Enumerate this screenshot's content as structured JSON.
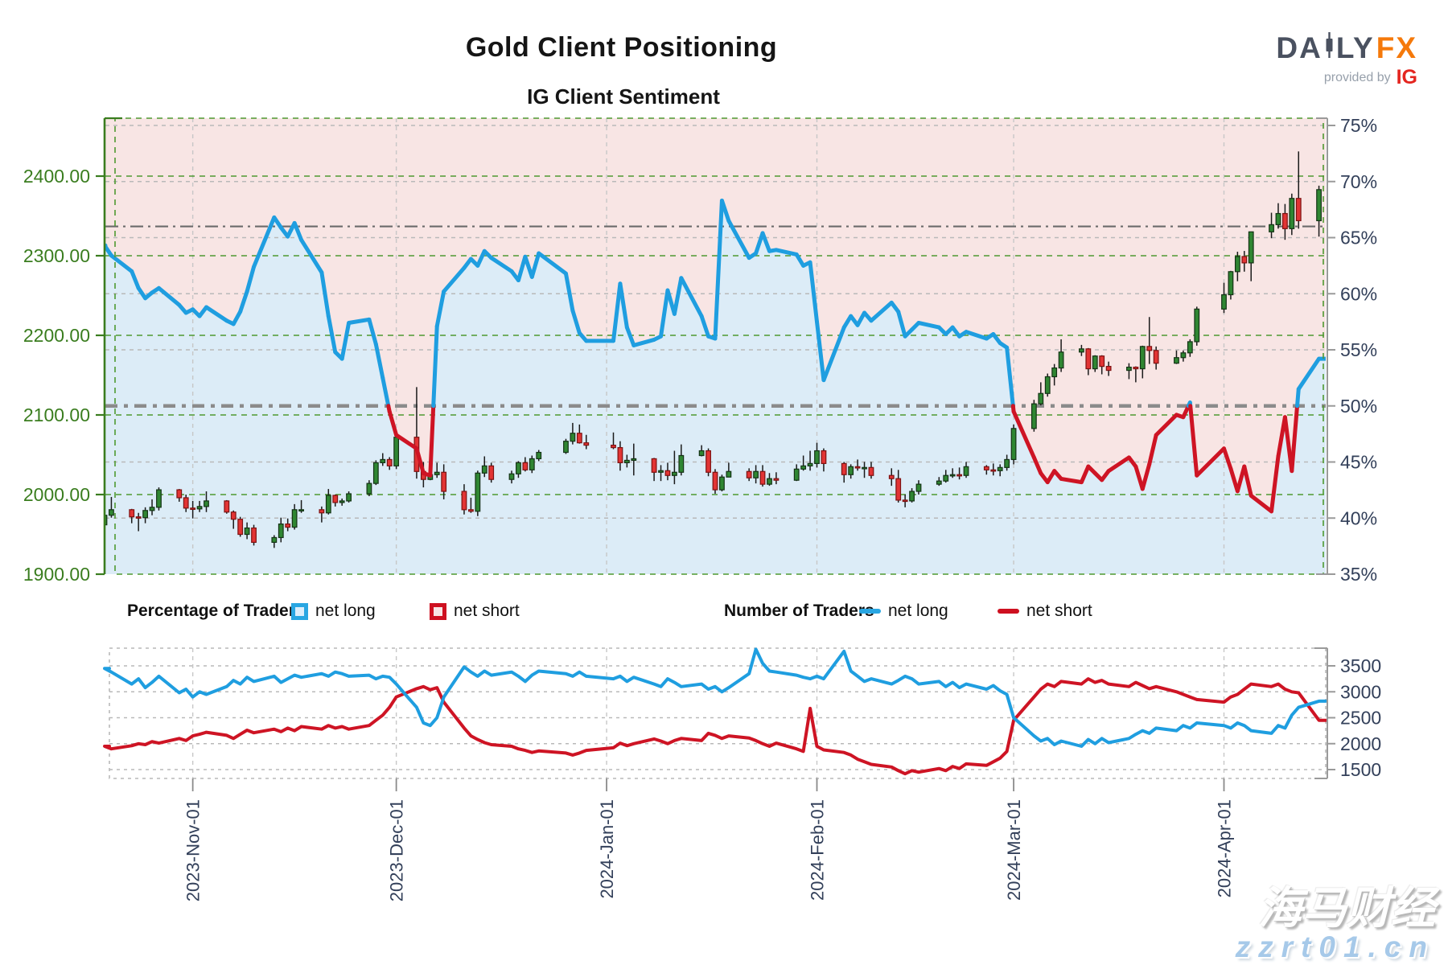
{
  "header": {
    "title": "Gold Client Positioning",
    "subtitle": "IG Client Sentiment"
  },
  "logo": {
    "brand_left": "DA",
    "brand_right": "LY",
    "brand_fx": "FX",
    "provided_by": "provided by",
    "ig": "IG"
  },
  "legend": {
    "pct_title": "Percentage of Traders",
    "num_title": "Number of Traders",
    "net_long": "net long",
    "net_short": "net short"
  },
  "watermark": {
    "line1": "海马财经",
    "line2": "zzrt01.cn"
  },
  "colors": {
    "sentiment_blue": "#1f9ee0",
    "sentiment_red": "#ce1424",
    "fill_above_pink": "#f8e5e4",
    "fill_below_blue": "#dcecf7",
    "candle_up_fill": "#2f8632",
    "candle_up_stroke": "#143315",
    "candle_down_fill": "#e23434",
    "candle_down_stroke": "#7e1111",
    "wick": "#1a1a1a",
    "green_axis": "#3a7d1f",
    "green_grid": "#4f9931",
    "gray_grid": "#b9b9b9",
    "vert_grid": "#c7c7c7",
    "ref_thin": "#6a6a6a",
    "ref_thick": "#8b8b8b",
    "right_axis_text": "#33405a",
    "spine_gray": "#9a9a9a"
  },
  "chart_data": {
    "type": "candlestick+line dual-panel sentiment chart",
    "title": "Gold Client Positioning",
    "subtitle": "IG Client Sentiment",
    "x_domain_days": 180,
    "x_start_date": "2023-Oct-19",
    "x_ticks": [
      {
        "day": 13,
        "label": "2023-Nov-01"
      },
      {
        "day": 43,
        "label": "2023-Dec-01"
      },
      {
        "day": 74,
        "label": "2024-Jan-01"
      },
      {
        "day": 105,
        "label": "2024-Feb-01"
      },
      {
        "day": 134,
        "label": "2024-Mar-01"
      },
      {
        "day": 165,
        "label": "2024-Apr-01"
      }
    ],
    "price_axis": {
      "position": "left",
      "ticks": [
        {
          "v": 1900,
          "label": "1900.00"
        },
        {
          "v": 2000,
          "label": "2000.00"
        },
        {
          "v": 2100,
          "label": "2100.00"
        },
        {
          "v": 2200,
          "label": "2200.00"
        },
        {
          "v": 2300,
          "label": "2300.00"
        },
        {
          "v": 2400,
          "label": "2400.00"
        }
      ]
    },
    "pct_axis": {
      "position": "right",
      "ticks": [
        {
          "v": 35,
          "label": "35%"
        },
        {
          "v": 40,
          "label": "40%"
        },
        {
          "v": 45,
          "label": "45%"
        },
        {
          "v": 50,
          "label": "50%"
        },
        {
          "v": 55,
          "label": "55%"
        },
        {
          "v": 60,
          "label": "60%"
        },
        {
          "v": 65,
          "label": "65%"
        },
        {
          "v": 70,
          "label": "70%"
        },
        {
          "v": 75,
          "label": "75%"
        }
      ]
    },
    "traders_axis": {
      "position": "right",
      "ticks": [
        {
          "v": 1500,
          "label": "1500"
        },
        {
          "v": 2000,
          "label": "2000"
        },
        {
          "v": 2500,
          "label": "2500"
        },
        {
          "v": 3000,
          "label": "3000"
        },
        {
          "v": 3500,
          "label": "3500"
        }
      ]
    },
    "reference_pct_lines": [
      {
        "value": 66,
        "style": "thin"
      },
      {
        "value": 50,
        "style": "thick"
      }
    ],
    "days": [
      0,
      1,
      4,
      5,
      6,
      7,
      8,
      11,
      12,
      13,
      14,
      15,
      18,
      19,
      20,
      21,
      22,
      25,
      26,
      27,
      28,
      29,
      32,
      33,
      34,
      35,
      36,
      39,
      40,
      41,
      42,
      43,
      46,
      47,
      48,
      49,
      50,
      53,
      54,
      55,
      56,
      57,
      60,
      61,
      62,
      63,
      64,
      68,
      69,
      70,
      71,
      75,
      76,
      77,
      78,
      81,
      82,
      83,
      84,
      85,
      88,
      89,
      90,
      91,
      92,
      95,
      96,
      97,
      98,
      99,
      102,
      103,
      104,
      105,
      106,
      109,
      110,
      111,
      112,
      113,
      116,
      117,
      118,
      119,
      120,
      123,
      124,
      125,
      126,
      127,
      130,
      131,
      132,
      133,
      134,
      137,
      138,
      139,
      140,
      141,
      144,
      145,
      146,
      147,
      148,
      151,
      152,
      153,
      154,
      155,
      158,
      159,
      160,
      161,
      165,
      166,
      167,
      168,
      169,
      172,
      173,
      174,
      175,
      176,
      179
    ],
    "candles_ohlc": [
      [
        1962,
        1982,
        1958,
        1974
      ],
      [
        1974,
        1997,
        1971,
        1981
      ],
      [
        1981,
        1982,
        1964,
        1972
      ],
      [
        1972,
        1977,
        1954,
        1971
      ],
      [
        1971,
        1984,
        1964,
        1980
      ],
      [
        1980,
        1994,
        1974,
        1984
      ],
      [
        1984,
        2009,
        1980,
        2006
      ],
      [
        2006,
        2007,
        1991,
        1996
      ],
      [
        1996,
        2000,
        1978,
        1983
      ],
      [
        1983,
        1992,
        1970,
        1982
      ],
      [
        1982,
        1992,
        1978,
        1985
      ],
      [
        1985,
        2004,
        1978,
        1992
      ],
      [
        1992,
        1993,
        1976,
        1978
      ],
      [
        1978,
        1980,
        1957,
        1969
      ],
      [
        1969,
        1972,
        1947,
        1950
      ],
      [
        1950,
        1965,
        1944,
        1958
      ],
      [
        1958,
        1962,
        1936,
        1940
      ],
      [
        1940,
        1949,
        1933,
        1946
      ],
      [
        1946,
        1971,
        1940,
        1963
      ],
      [
        1963,
        1970,
        1954,
        1959
      ],
      [
        1959,
        1988,
        1956,
        1981
      ],
      [
        1981,
        1993,
        1977,
        1981
      ],
      [
        1981,
        1985,
        1965,
        1977
      ],
      [
        1977,
        2007,
        1975,
        1999
      ],
      [
        1999,
        2000,
        1985,
        1990
      ],
      [
        1990,
        1995,
        1986,
        1992
      ],
      [
        1992,
        2004,
        1990,
        2001
      ],
      [
        2001,
        2018,
        1998,
        2014
      ],
      [
        2014,
        2043,
        2012,
        2040
      ],
      [
        2040,
        2052,
        2036,
        2044
      ],
      [
        2044,
        2047,
        2031,
        2036
      ],
      [
        2036,
        2075,
        2032,
        2072
      ],
      [
        2072,
        2135,
        2020,
        2029
      ],
      [
        2029,
        2041,
        2009,
        2019
      ],
      [
        2019,
        2034,
        2018,
        2025
      ],
      [
        2025,
        2040,
        2021,
        2028
      ],
      [
        2028,
        2038,
        1994,
        2004
      ],
      [
        2004,
        2013,
        1975,
        1981
      ],
      [
        1981,
        1996,
        1977,
        1979
      ],
      [
        1979,
        2030,
        1973,
        2027
      ],
      [
        2027,
        2048,
        2022,
        2036
      ],
      [
        2036,
        2040,
        2015,
        2019
      ],
      [
        2019,
        2030,
        2014,
        2026
      ],
      [
        2026,
        2042,
        2021,
        2040
      ],
      [
        2040,
        2047,
        2029,
        2031
      ],
      [
        2031,
        2049,
        2027,
        2045
      ],
      [
        2045,
        2056,
        2042,
        2053
      ],
      [
        2053,
        2070,
        2051,
        2067
      ],
      [
        2067,
        2090,
        2063,
        2077
      ],
      [
        2077,
        2088,
        2064,
        2065
      ],
      [
        2065,
        2075,
        2057,
        2062
      ],
      [
        2062,
        2078,
        2057,
        2059
      ],
      [
        2059,
        2067,
        2030,
        2040
      ],
      [
        2040,
        2050,
        2034,
        2043
      ],
      [
        2043,
        2064,
        2024,
        2045
      ],
      [
        2045,
        2046,
        2017,
        2028
      ],
      [
        2028,
        2037,
        2017,
        2030
      ],
      [
        2030,
        2040,
        2018,
        2024
      ],
      [
        2024,
        2055,
        2013,
        2028
      ],
      [
        2028,
        2063,
        2024,
        2049
      ],
      [
        2049,
        2062,
        2048,
        2055
      ],
      [
        2055,
        2058,
        2023,
        2028
      ],
      [
        2028,
        2032,
        2001,
        2006
      ],
      [
        2006,
        2025,
        2004,
        2022
      ],
      [
        2022,
        2040,
        2022,
        2029
      ],
      [
        2029,
        2033,
        2017,
        2021
      ],
      [
        2021,
        2037,
        2014,
        2029
      ],
      [
        2029,
        2037,
        2010,
        2013
      ],
      [
        2013,
        2027,
        2011,
        2020
      ],
      [
        2020,
        2028,
        2013,
        2018
      ],
      [
        2018,
        2038,
        2017,
        2032
      ],
      [
        2032,
        2049,
        2030,
        2036
      ],
      [
        2036,
        2055,
        2030,
        2039
      ],
      [
        2039,
        2065,
        2034,
        2055
      ],
      [
        2055,
        2058,
        2029,
        2039
      ],
      [
        2039,
        2041,
        2015,
        2025
      ],
      [
        2025,
        2038,
        2020,
        2035
      ],
      [
        2035,
        2044,
        2030,
        2034
      ],
      [
        2034,
        2041,
        2021,
        2034
      ],
      [
        2034,
        2041,
        2020,
        2024
      ],
      [
        2024,
        2033,
        2011,
        2020
      ],
      [
        2020,
        2031,
        1990,
        1993
      ],
      [
        1993,
        2000,
        1984,
        1992
      ],
      [
        1992,
        2008,
        1990,
        2004
      ],
      [
        2004,
        2018,
        2000,
        2013
      ],
      [
        2013,
        2022,
        2011,
        2017
      ],
      [
        2017,
        2031,
        2015,
        2024
      ],
      [
        2024,
        2033,
        2021,
        2025
      ],
      [
        2025,
        2034,
        2019,
        2024
      ],
      [
        2024,
        2041,
        2021,
        2035
      ],
      [
        2035,
        2037,
        2025,
        2031
      ],
      [
        2031,
        2039,
        2024,
        2030
      ],
      [
        2030,
        2038,
        2023,
        2034
      ],
      [
        2034,
        2050,
        2030,
        2044
      ],
      [
        2044,
        2088,
        2038,
        2083
      ],
      [
        2083,
        2119,
        2079,
        2114
      ],
      [
        2114,
        2141,
        2112,
        2127
      ],
      [
        2127,
        2152,
        2123,
        2148
      ],
      [
        2148,
        2164,
        2137,
        2159
      ],
      [
        2159,
        2195,
        2154,
        2179
      ],
      [
        2179,
        2188,
        2174,
        2183
      ],
      [
        2183,
        2184,
        2150,
        2158
      ],
      [
        2158,
        2175,
        2154,
        2174
      ],
      [
        2174,
        2175,
        2151,
        2161
      ],
      [
        2161,
        2167,
        2149,
        2156
      ],
      [
        2156,
        2165,
        2145,
        2160
      ],
      [
        2160,
        2161,
        2141,
        2158
      ],
      [
        2158,
        2187,
        2146,
        2186
      ],
      [
        2186,
        2223,
        2164,
        2181
      ],
      [
        2181,
        2186,
        2157,
        2165
      ],
      [
        2165,
        2181,
        2164,
        2172
      ],
      [
        2172,
        2181,
        2167,
        2178
      ],
      [
        2178,
        2195,
        2173,
        2192
      ],
      [
        2192,
        2236,
        2187,
        2233
      ],
      [
        2233,
        2266,
        2228,
        2251
      ],
      [
        2251,
        2281,
        2245,
        2280
      ],
      [
        2280,
        2305,
        2268,
        2299
      ],
      [
        2299,
        2306,
        2280,
        2291
      ],
      [
        2291,
        2330,
        2268,
        2330
      ],
      [
        2330,
        2354,
        2322,
        2339
      ],
      [
        2339,
        2366,
        2334,
        2353
      ],
      [
        2353,
        2365,
        2320,
        2334
      ],
      [
        2334,
        2378,
        2326,
        2372
      ],
      [
        2372,
        2431,
        2334,
        2344
      ],
      [
        2344,
        2388,
        2324,
        2383
      ]
    ],
    "net_long_pct": [
      64.3,
      63.4,
      62,
      60.5,
      59.6,
      60.1,
      60.5,
      59,
      58.3,
      58.6,
      58,
      58.8,
      57.6,
      57.3,
      58.4,
      60.2,
      62.4,
      66.8,
      65.9,
      65.1,
      66.3,
      64.8,
      61.9,
      58,
      54.8,
      54.2,
      57.4,
      57.7,
      55.5,
      52.5,
      49.5,
      47.4,
      46.2,
      44,
      43.8,
      57.1,
      60.2,
      62.3,
      63.1,
      62.5,
      63.8,
      63.2,
      62,
      61.2,
      63.3,
      61.5,
      63.6,
      61.8,
      58.5,
      56.5,
      55.8,
      55.8,
      60.9,
      57,
      55.4,
      55.9,
      56.2,
      60.3,
      58.2,
      61.4,
      58,
      56.2,
      56,
      68.3,
      66.5,
      63.2,
      63.6,
      65.4,
      63.8,
      63.9,
      63.5,
      62.5,
      62.8,
      57.5,
      52.3,
      57,
      58,
      57.2,
      58.3,
      57.6,
      59.2,
      58.4,
      56.2,
      56.8,
      57.4,
      57,
      56.4,
      57,
      56.2,
      56.6,
      56,
      56.4,
      55.6,
      55.2,
      49.5,
      45.4,
      44,
      43.2,
      44.2,
      43.5,
      43.2,
      44.6,
      44,
      43.4,
      44.2,
      45.4,
      44.6,
      42.6,
      44.8,
      47.4,
      49.2,
      49,
      50.3,
      43.8,
      46.2,
      44.4,
      42.4,
      44.6,
      42,
      40.6,
      45.5,
      49,
      44.2,
      51.5,
      54.2
    ],
    "net_long_traders": [
      3450,
      3380,
      3150,
      3250,
      3080,
      3180,
      3300,
      2980,
      3050,
      2900,
      3000,
      2950,
      3100,
      3220,
      3150,
      3280,
      3200,
      3300,
      3180,
      3250,
      3320,
      3280,
      3350,
      3300,
      3380,
      3350,
      3300,
      3320,
      3250,
      3300,
      3280,
      3150,
      2700,
      2400,
      2350,
      2500,
      2900,
      3480,
      3380,
      3300,
      3400,
      3320,
      3380,
      3300,
      3200,
      3320,
      3400,
      3350,
      3300,
      3380,
      3300,
      3250,
      3300,
      3200,
      3280,
      3150,
      3100,
      3250,
      3180,
      3100,
      3150,
      3050,
      3100,
      3000,
      3080,
      3350,
      3820,
      3550,
      3400,
      3380,
      3320,
      3280,
      3250,
      3300,
      3250,
      3780,
      3400,
      3300,
      3200,
      3250,
      3150,
      3220,
      3300,
      3250,
      3150,
      3200,
      3100,
      3180,
      3080,
      3150,
      3050,
      3120,
      3020,
      2950,
      2500,
      2150,
      2050,
      2100,
      1980,
      2050,
      1950,
      2080,
      2000,
      2100,
      2020,
      2100,
      2180,
      2250,
      2200,
      2300,
      2250,
      2350,
      2300,
      2400,
      2350,
      2300,
      2400,
      2350,
      2250,
      2200,
      2350,
      2300,
      2550,
      2700,
      2820
    ],
    "net_short_traders": [
      1950,
      1900,
      1960,
      2000,
      1980,
      2040,
      2010,
      2100,
      2060,
      2150,
      2180,
      2220,
      2160,
      2100,
      2180,
      2260,
      2210,
      2280,
      2230,
      2300,
      2250,
      2330,
      2280,
      2350,
      2300,
      2330,
      2280,
      2350,
      2450,
      2550,
      2700,
      2900,
      3060,
      3100,
      3040,
      3080,
      2800,
      2300,
      2150,
      2080,
      2020,
      1980,
      1950,
      1900,
      1870,
      1830,
      1860,
      1820,
      1780,
      1820,
      1870,
      1920,
      2010,
      1960,
      2000,
      2090,
      2050,
      2000,
      2060,
      2100,
      2060,
      2200,
      2160,
      2100,
      2150,
      2110,
      2060,
      2000,
      1950,
      2010,
      1900,
      1850,
      2680,
      1950,
      1880,
      1830,
      1780,
      1700,
      1650,
      1600,
      1550,
      1480,
      1420,
      1480,
      1450,
      1520,
      1480,
      1560,
      1520,
      1610,
      1580,
      1650,
      1720,
      1850,
      2450,
      2900,
      3050,
      3150,
      3100,
      3200,
      3150,
      3250,
      3180,
      3220,
      3150,
      3100,
      3180,
      3120,
      3060,
      3100,
      3000,
      2950,
      2900,
      2850,
      2800,
      2900,
      2950,
      3050,
      3150,
      3100,
      3150,
      3050,
      3000,
      2980,
      2450
    ]
  }
}
